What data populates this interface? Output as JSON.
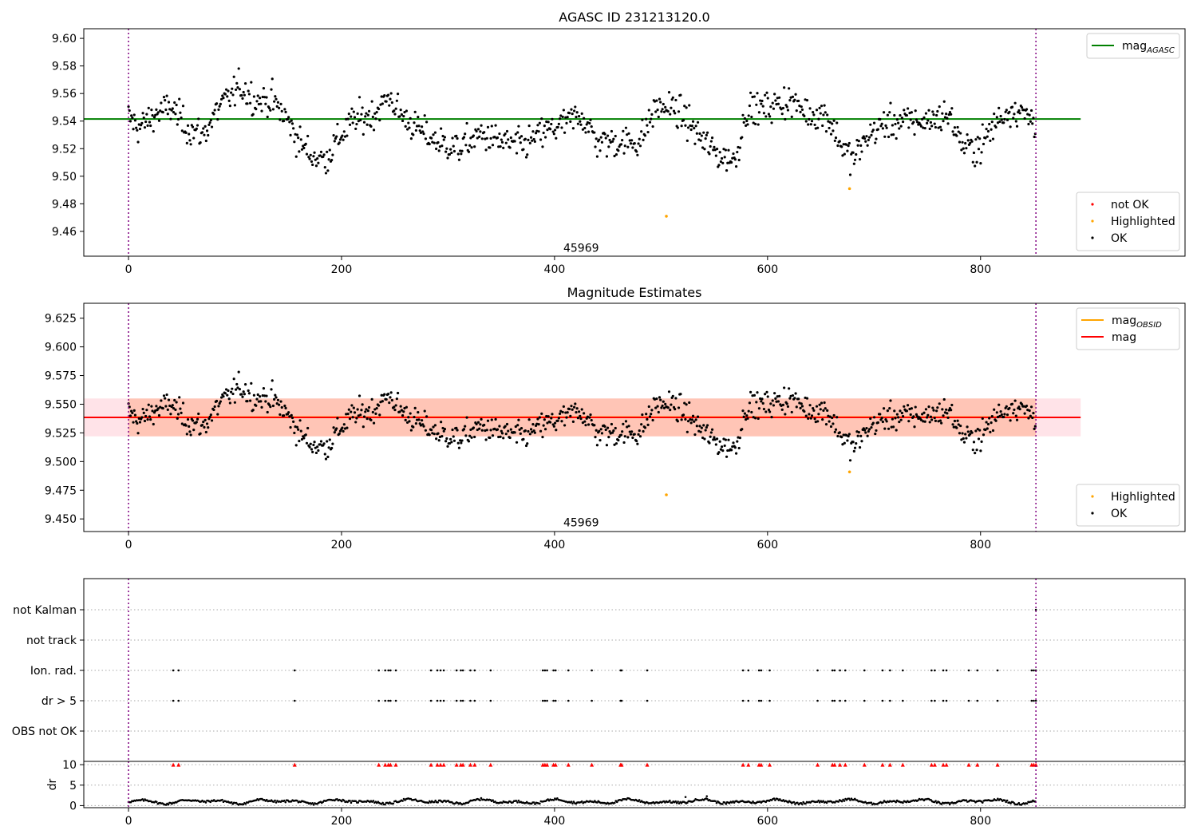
{
  "chart_data": [
    {
      "type": "scatter",
      "title": "AGASC ID 231213120.0",
      "xlim": [
        -42,
        992
      ],
      "ylim": [
        9.442,
        9.607
      ],
      "xticks": [
        0,
        200,
        400,
        600,
        800
      ],
      "yticks": [
        9.46,
        9.48,
        9.5,
        9.52,
        9.54,
        9.56,
        9.58,
        9.6
      ],
      "ytick_labels": [
        "9.46",
        "9.48",
        "9.50",
        "9.52",
        "9.54",
        "9.56",
        "9.58",
        "9.60"
      ],
      "obsid_label": {
        "text": "45969",
        "x": 425,
        "y": 9.448
      },
      "vlines": [
        0,
        852
      ],
      "hlines": [
        {
          "name": "mag_AGASC",
          "y": 9.5415,
          "x_range": [
            -42,
            894
          ],
          "color": "#008000"
        }
      ],
      "legend_top": {
        "placement": "top-right",
        "entries": [
          {
            "label": "mag",
            "sub": "AGASC",
            "marker": "line",
            "color": "#008000"
          }
        ]
      },
      "legend_bottom": {
        "placement": "bottom-right",
        "entries": [
          {
            "label": "not OK",
            "marker": "dot",
            "color": "#ff0000"
          },
          {
            "label": "Highlighted",
            "marker": "dot",
            "color": "#ffa500"
          },
          {
            "label": "OK",
            "marker": "dot",
            "color": "#000000"
          }
        ]
      },
      "highlighted_points": [
        [
          505,
          9.471
        ],
        [
          677,
          9.491
        ]
      ],
      "show_points": true
    },
    {
      "type": "scatter",
      "title": "Magnitude Estimates",
      "xlim": [
        -42,
        992
      ],
      "ylim": [
        9.439,
        9.638
      ],
      "xticks": [
        0,
        200,
        400,
        600,
        800
      ],
      "yticks": [
        9.45,
        9.475,
        9.5,
        9.525,
        9.55,
        9.575,
        9.6,
        9.625
      ],
      "ytick_labels": [
        "9.450",
        "9.475",
        "9.500",
        "9.525",
        "9.550",
        "9.575",
        "9.600",
        "9.625"
      ],
      "obsid_label": {
        "text": "45969",
        "x": 425,
        "y": 9.447
      },
      "vlines": [
        0,
        852
      ],
      "band": {
        "y": [
          9.522,
          9.555
        ],
        "x_range": [
          -42,
          894
        ],
        "color": "#ffc0cb",
        "opacity": 0.45
      },
      "band_obsid": {
        "y": [
          9.522,
          9.555
        ],
        "x_range": [
          0,
          852
        ],
        "color": "#ffa07a",
        "opacity": 0.45
      },
      "hlines": [
        {
          "name": "mag_OBSID",
          "y": 9.5388,
          "x_range": [
            0,
            852
          ],
          "color": "#ffa500"
        },
        {
          "name": "mag",
          "y": 9.5385,
          "x_range": [
            -42,
            894
          ],
          "color": "#ff0000"
        }
      ],
      "legend_top": {
        "placement": "top-right",
        "entries": [
          {
            "label": "mag",
            "sub": "OBSID",
            "marker": "line",
            "color": "#ffa500"
          },
          {
            "label": "mag",
            "marker": "line",
            "color": "#ff0000"
          }
        ]
      },
      "legend_bottom": {
        "placement": "bottom-right",
        "entries": [
          {
            "label": "Highlighted",
            "marker": "dot",
            "color": "#ffa500"
          },
          {
            "label": "OK",
            "marker": "dot",
            "color": "#000000"
          }
        ]
      },
      "highlighted_points": [
        [
          505,
          9.471
        ],
        [
          677,
          9.491
        ]
      ],
      "show_points": true
    },
    {
      "type": "scatter",
      "xlim": [
        -42,
        992
      ],
      "rows": [
        "not Kalman",
        "not track",
        "Ion. rad.",
        "dr > 5",
        "OBS not OK"
      ],
      "flag_points_x": [
        42,
        47,
        156,
        235,
        241,
        244,
        246,
        251,
        284,
        290,
        293,
        296,
        308,
        312,
        314,
        321,
        325,
        340,
        389,
        391,
        393,
        399,
        401,
        413,
        435,
        462,
        463,
        487,
        577,
        582,
        592,
        594,
        602,
        647,
        661,
        663,
        668,
        673,
        691,
        708,
        715,
        727,
        754,
        757,
        765,
        768,
        789,
        797,
        816,
        848,
        850,
        852
      ],
      "not_kalman_x": [
        852
      ],
      "vlines": [
        0,
        852
      ]
    },
    {
      "type": "scatter",
      "xlim": [
        -42,
        992
      ],
      "ylim": [
        -0.5,
        10.8
      ],
      "ylabel": "dr",
      "yticks": [
        0,
        5,
        10
      ],
      "ytick_labels": [
        "0",
        "5",
        "10"
      ],
      "xticks": [
        0,
        200,
        400,
        600,
        800
      ],
      "xtick_labels": [
        "0",
        "200",
        "400",
        "600",
        "800"
      ],
      "outliers": [
        [
          523,
          2.1
        ],
        [
          543,
          2.3
        ]
      ],
      "vlines": [
        0,
        852
      ]
    }
  ]
}
